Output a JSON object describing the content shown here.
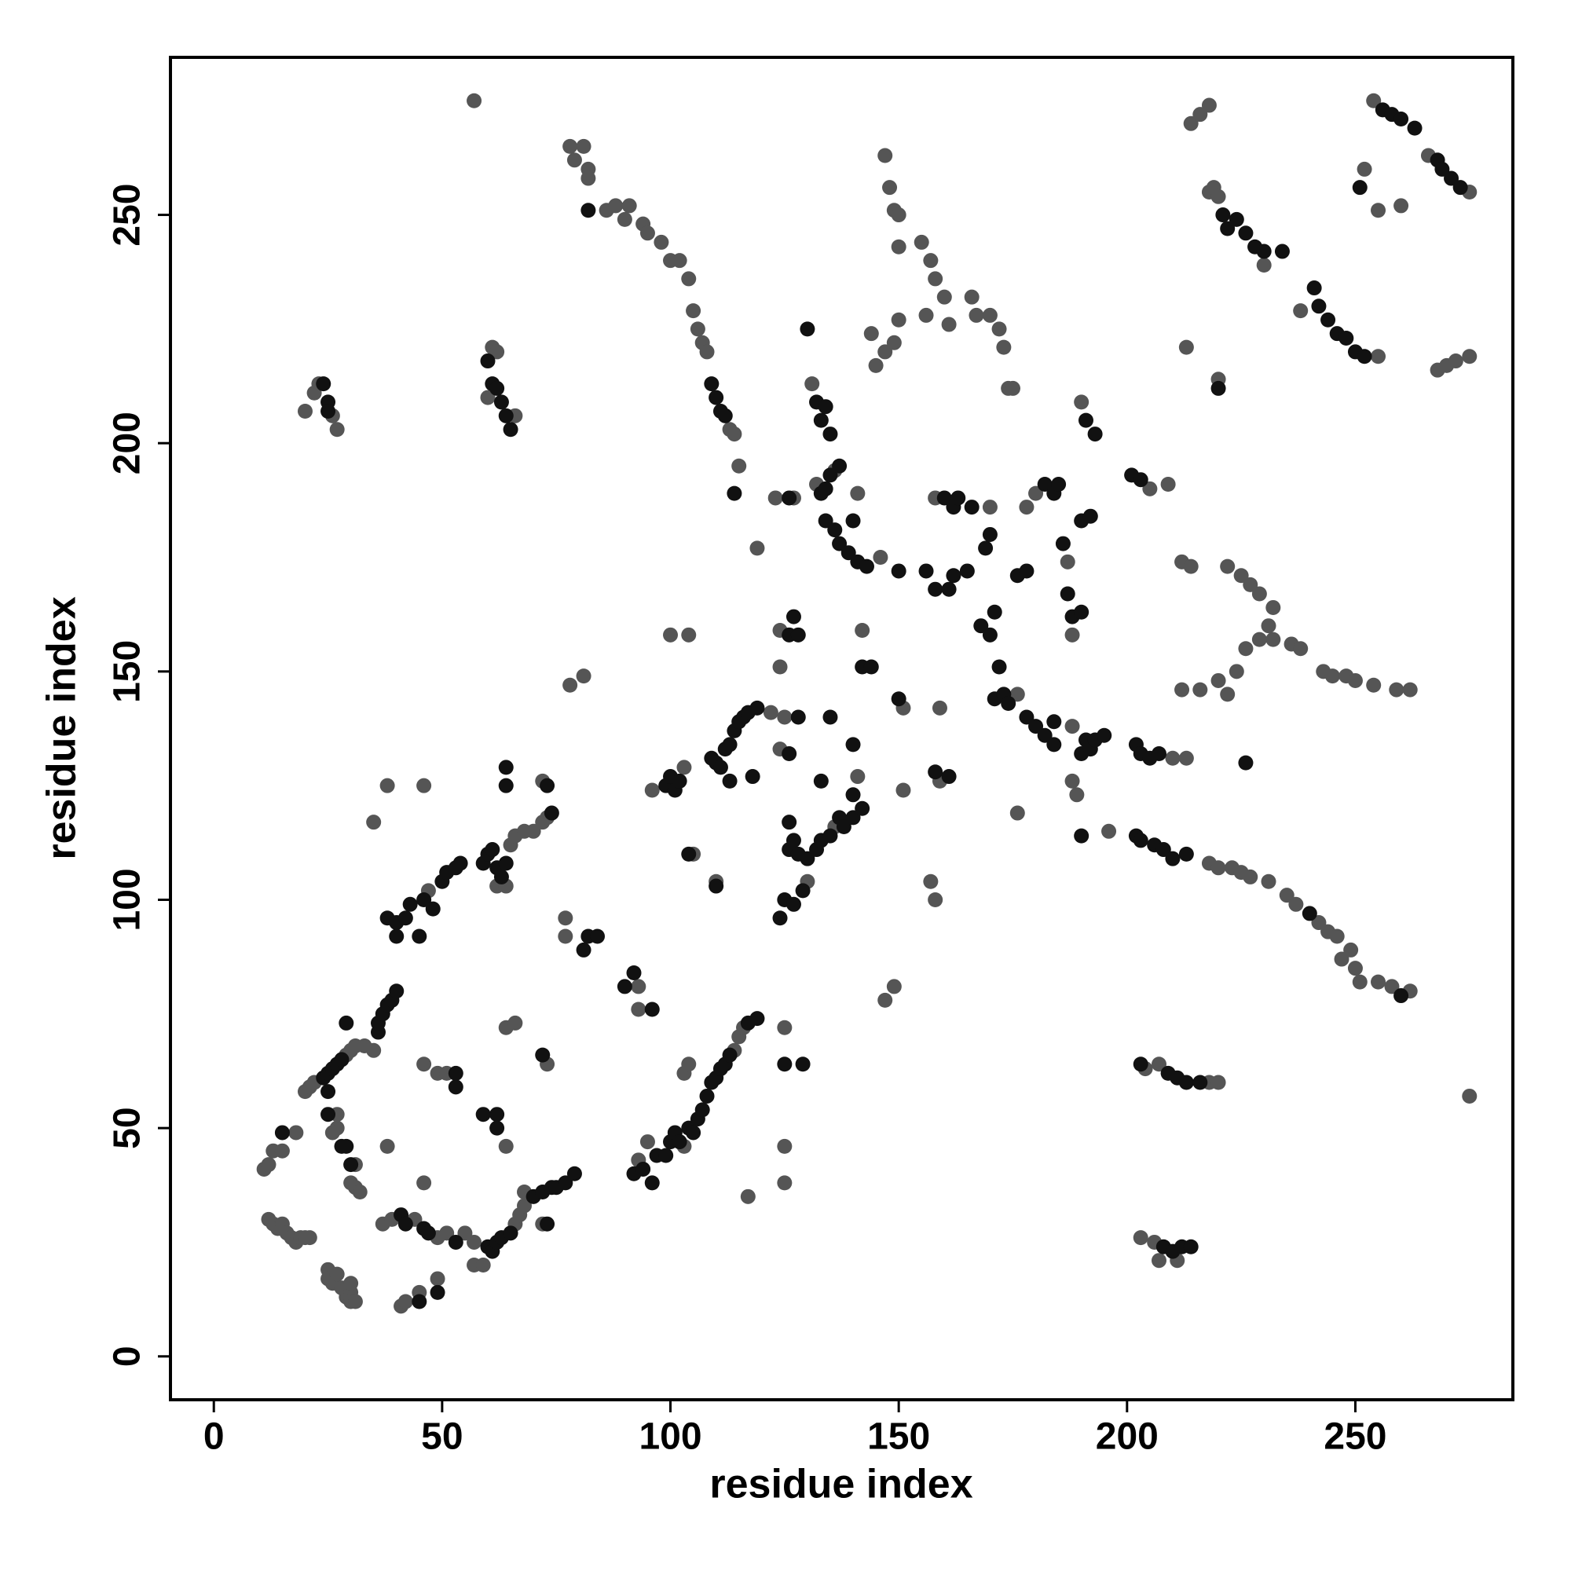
{
  "chart_data": {
    "type": "scatter",
    "x_label": "residue index",
    "y_label": "residue index",
    "xlim": [
      -9.5,
      284.5
    ],
    "ylim": [
      -9.5,
      284.5
    ],
    "xticks": [
      0,
      50,
      100,
      150,
      200,
      250
    ],
    "yticks": [
      0,
      50,
      100,
      150,
      200,
      250
    ],
    "grid": false,
    "series": [
      {
        "color": "#555555",
        "x": [
          11,
          12,
          13,
          15,
          18,
          12,
          13,
          14,
          15,
          16,
          17,
          18,
          19,
          20,
          21,
          25,
          25,
          26,
          27,
          28,
          29,
          30,
          30,
          31,
          30,
          20,
          21,
          22,
          29,
          30,
          31,
          33,
          27,
          26,
          27,
          31,
          30,
          31,
          32,
          35,
          38,
          38,
          35,
          46,
          37,
          39,
          44,
          49,
          51,
          55,
          57,
          41,
          42,
          45,
          49,
          46,
          46,
          49,
          51,
          64,
          57,
          59,
          66,
          67,
          68,
          68,
          72,
          47,
          65,
          66,
          68,
          70,
          72,
          73,
          72,
          62,
          64,
          64,
          66,
          73,
          57,
          22,
          23,
          26,
          27,
          20,
          61,
          62,
          66,
          60,
          78,
          81,
          77,
          77,
          93,
          93,
          93,
          95,
          103,
          114,
          115,
          116,
          103,
          104,
          117,
          125,
          125,
          125,
          78,
          79,
          81,
          82,
          82,
          86,
          88,
          90,
          91,
          94,
          95,
          98,
          100,
          102,
          104,
          105,
          106,
          107,
          108,
          113,
          114,
          115,
          96,
          103,
          105,
          122,
          124,
          110,
          100,
          104,
          119,
          123,
          127,
          131,
          132,
          136,
          146,
          141,
          124,
          124,
          125,
          130,
          136,
          141,
          142,
          147,
          149,
          151,
          151,
          147,
          148,
          149,
          150,
          150,
          144,
          145,
          147,
          149,
          150,
          155,
          157,
          158,
          156,
          160,
          161,
          166,
          167,
          170,
          172,
          173,
          174,
          175,
          158,
          170,
          159,
          157,
          158,
          159,
          176,
          176,
          178,
          180,
          187,
          188,
          188,
          188,
          189,
          196,
          190,
          205,
          209,
          210,
          213,
          218,
          220,
          223,
          225,
          227,
          231,
          235,
          237,
          242,
          244,
          246,
          247,
          249,
          250,
          251,
          255,
          258,
          262,
          204,
          207,
          218,
          220,
          203,
          206,
          207,
          211,
          212,
          214,
          212,
          216,
          220,
          222,
          224,
          222,
          225,
          227,
          229,
          231,
          232,
          236,
          238,
          243,
          245,
          248,
          250,
          254,
          259,
          262,
          226,
          229,
          232,
          213,
          220,
          214,
          216,
          218,
          218,
          219,
          220,
          230,
          238,
          255,
          252,
          255,
          260,
          254,
          266,
          275,
          268,
          270,
          272,
          275,
          275
        ],
        "values": [
          41,
          42,
          45,
          45,
          49,
          30,
          29,
          28,
          29,
          27,
          26,
          25,
          26,
          26,
          26,
          19,
          17,
          16,
          18,
          15,
          13,
          14,
          12,
          12,
          16,
          58,
          59,
          60,
          66,
          67,
          68,
          68,
          50,
          49,
          53,
          42,
          38,
          37,
          36,
          67,
          46,
          125,
          117,
          125,
          29,
          30,
          30,
          26,
          27,
          27,
          25,
          11,
          12,
          14,
          17,
          38,
          64,
          62,
          62,
          46,
          20,
          20,
          29,
          31,
          33,
          36,
          29,
          102,
          112,
          114,
          115,
          115,
          117,
          118,
          126,
          103,
          103,
          72,
          73,
          64,
          275,
          211,
          213,
          206,
          203,
          207,
          221,
          220,
          206,
          210,
          147,
          149,
          96,
          92,
          81,
          76,
          43,
          47,
          46,
          67,
          70,
          72,
          62,
          64,
          35,
          38,
          46,
          72,
          265,
          262,
          265,
          260,
          258,
          251,
          252,
          249,
          252,
          248,
          246,
          244,
          240,
          240,
          236,
          229,
          225,
          222,
          220,
          203,
          202,
          195,
          124,
          129,
          110,
          141,
          133,
          104,
          158,
          158,
          177,
          188,
          188,
          213,
          191,
          194,
          175,
          189,
          159,
          151,
          140,
          104,
          116,
          127,
          159,
          78,
          81,
          142,
          124,
          263,
          256,
          251,
          250,
          243,
          224,
          217,
          220,
          222,
          227,
          244,
          240,
          236,
          228,
          232,
          226,
          232,
          228,
          228,
          225,
          221,
          212,
          212,
          188,
          186,
          126,
          104,
          100,
          142,
          145,
          119,
          186,
          189,
          174,
          158,
          138,
          126,
          123,
          115,
          209,
          190,
          191,
          131,
          131,
          108,
          107,
          107,
          106,
          105,
          104,
          101,
          99,
          95,
          93,
          92,
          87,
          89,
          85,
          82,
          82,
          81,
          80,
          63,
          64,
          60,
          60,
          26,
          25,
          21,
          21,
          174,
          173,
          146,
          146,
          148,
          145,
          150,
          173,
          171,
          169,
          167,
          160,
          157,
          156,
          155,
          150,
          149,
          149,
          148,
          147,
          146,
          146,
          155,
          157,
          164,
          221,
          214,
          270,
          272,
          274,
          255,
          256,
          254,
          239,
          229,
          219,
          260,
          251,
          252,
          275,
          263,
          255,
          216,
          217,
          218,
          219,
          57
        ]
      },
      {
        "color": "#111111",
        "x": [
          15,
          24,
          25,
          26,
          27,
          28,
          29,
          25,
          25,
          28,
          29,
          30,
          36,
          36,
          37,
          38,
          39,
          40,
          41,
          42,
          46,
          47,
          53,
          45,
          49,
          53,
          53,
          59,
          62,
          62,
          60,
          61,
          62,
          63,
          65,
          70,
          72,
          74,
          75,
          77,
          79,
          73,
          38,
          40,
          40,
          42,
          43,
          45,
          46,
          48,
          50,
          51,
          53,
          54,
          59,
          60,
          61,
          62,
          63,
          64,
          74,
          64,
          64,
          73,
          72,
          24,
          25,
          25,
          60,
          61,
          62,
          63,
          64,
          65,
          81,
          82,
          84,
          90,
          92,
          96,
          92,
          94,
          96,
          97,
          99,
          100,
          101,
          102,
          104,
          105,
          106,
          107,
          108,
          109,
          110,
          111,
          112,
          113,
          117,
          119,
          125,
          129,
          82,
          109,
          110,
          111,
          112,
          114,
          99,
          100,
          101,
          102,
          104,
          109,
          110,
          111,
          112,
          113,
          114,
          115,
          116,
          117,
          119,
          110,
          118,
          113,
          126,
          130,
          132,
          133,
          134,
          135,
          133,
          134,
          135,
          137,
          134,
          136,
          137,
          139,
          141,
          143,
          140,
          126,
          128,
          127,
          126,
          128,
          133,
          135,
          140,
          124,
          125,
          127,
          129,
          126,
          127,
          128,
          130,
          132,
          133,
          135,
          137,
          138,
          140,
          142,
          140,
          126,
          142,
          144,
          150,
          150,
          160,
          162,
          163,
          166,
          156,
          158,
          161,
          162,
          165,
          158,
          161,
          168,
          170,
          171,
          172,
          171,
          173,
          174,
          178,
          180,
          182,
          184,
          169,
          170,
          176,
          178,
          182,
          184,
          185,
          186,
          187,
          188,
          190,
          184,
          190,
          191,
          192,
          193,
          195,
          190,
          190,
          192,
          191,
          193,
          201,
          203,
          202,
          203,
          205,
          207,
          202,
          203,
          206,
          208,
          210,
          213,
          240,
          260,
          203,
          209,
          211,
          213,
          216,
          208,
          210,
          212,
          214,
          226,
          220,
          221,
          222,
          224,
          226,
          228,
          230,
          234,
          241,
          242,
          244,
          246,
          248,
          250,
          252,
          251,
          256,
          258,
          260,
          263,
          268,
          269,
          271,
          273
        ],
        "values": [
          49,
          61,
          62,
          63,
          64,
          65,
          73,
          58,
          53,
          46,
          46,
          42,
          71,
          73,
          75,
          77,
          78,
          80,
          31,
          29,
          28,
          27,
          25,
          12,
          14,
          62,
          59,
          53,
          53,
          50,
          24,
          23,
          25,
          26,
          27,
          35,
          36,
          37,
          37,
          38,
          40,
          29,
          96,
          95,
          92,
          96,
          99,
          92,
          100,
          98,
          104,
          106,
          107,
          108,
          108,
          110,
          111,
          107,
          105,
          108,
          119,
          125,
          129,
          125,
          66,
          213,
          209,
          207,
          218,
          213,
          212,
          209,
          206,
          203,
          89,
          92,
          92,
          81,
          84,
          76,
          40,
          41,
          38,
          44,
          44,
          47,
          49,
          47,
          50,
          49,
          52,
          54,
          57,
          60,
          61,
          63,
          64,
          66,
          73,
          74,
          64,
          64,
          251,
          213,
          210,
          207,
          206,
          189,
          125,
          127,
          124,
          126,
          110,
          131,
          130,
          129,
          133,
          134,
          137,
          139,
          140,
          141,
          142,
          103,
          127,
          126,
          188,
          225,
          209,
          205,
          208,
          202,
          189,
          190,
          193,
          195,
          183,
          181,
          178,
          176,
          174,
          173,
          183,
          158,
          158,
          162,
          132,
          140,
          126,
          140,
          134,
          96,
          100,
          99,
          102,
          111,
          113,
          110,
          109,
          111,
          113,
          114,
          118,
          116,
          118,
          120,
          123,
          117,
          151,
          151,
          144,
          172,
          188,
          186,
          188,
          186,
          172,
          168,
          168,
          171,
          172,
          128,
          127,
          160,
          158,
          163,
          151,
          144,
          145,
          143,
          140,
          138,
          136,
          134,
          177,
          180,
          171,
          172,
          191,
          189,
          191,
          178,
          167,
          162,
          163,
          139,
          132,
          135,
          133,
          135,
          136,
          114,
          183,
          184,
          205,
          202,
          193,
          192,
          134,
          132,
          131,
          132,
          114,
          113,
          112,
          111,
          109,
          110,
          97,
          79,
          64,
          62,
          61,
          60,
          60,
          24,
          23,
          24,
          24,
          130,
          212,
          250,
          247,
          249,
          246,
          243,
          242,
          242,
          234,
          230,
          227,
          224,
          223,
          220,
          219,
          256,
          273,
          272,
          271,
          269,
          262,
          260,
          258,
          256
        ]
      }
    ]
  }
}
